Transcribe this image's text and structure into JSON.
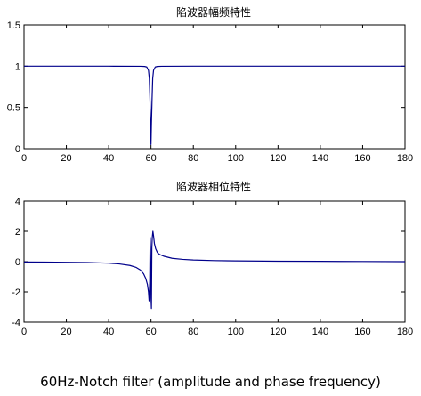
{
  "chart_data": [
    {
      "type": "line",
      "title": "陷波器幅频特性",
      "xlabel": "",
      "ylabel": "",
      "xlim": [
        0,
        180
      ],
      "ylim": [
        0,
        1.5
      ],
      "xticks": [
        "0",
        "20",
        "40",
        "60",
        "80",
        "100",
        "120",
        "140",
        "160",
        "180"
      ],
      "yticks": [
        "0",
        "0.5",
        "1",
        "1.5"
      ],
      "grid": false,
      "color": "#00008b",
      "series": [
        {
          "x": [
            0,
            20,
            40,
            55,
            57,
            58,
            58.8,
            59.2,
            59.5,
            59.8,
            60,
            60.2,
            60.5,
            60.8,
            61.2,
            62,
            63,
            65,
            80,
            120,
            180
          ],
          "y": [
            1.0,
            1.0,
            1.0,
            0.999,
            0.997,
            0.99,
            0.95,
            0.85,
            0.6,
            0.3,
            0.05,
            0.3,
            0.6,
            0.85,
            0.95,
            0.99,
            0.997,
            0.999,
            1.0,
            1.0,
            1.0
          ]
        }
      ]
    },
    {
      "type": "line",
      "title": "陷波器相位特性",
      "xlabel": "",
      "ylabel": "",
      "xlim": [
        0,
        180
      ],
      "ylim": [
        -4,
        4
      ],
      "xticks": [
        "0",
        "20",
        "40",
        "60",
        "80",
        "100",
        "120",
        "140",
        "160",
        "180"
      ],
      "yticks": [
        "-4",
        "-2",
        "0",
        "2",
        "4"
      ],
      "grid": false,
      "color": "#00008b",
      "series": [
        {
          "x": [
            0,
            10,
            20,
            30,
            40,
            45,
            50,
            53,
            55,
            56.5,
            57.5,
            58.3,
            58.8,
            59.1,
            59.4,
            59.6,
            59.8,
            60.0,
            60.2,
            60.4,
            60.6,
            60.9,
            61.2,
            61.6,
            62.2,
            63,
            64,
            66,
            70,
            75,
            80,
            90,
            100,
            120,
            140,
            160,
            180
          ],
          "y": [
            -0.02,
            -0.03,
            -0.04,
            -0.06,
            -0.1,
            -0.15,
            -0.25,
            -0.38,
            -0.55,
            -0.8,
            -1.1,
            -1.5,
            -2.0,
            -2.6,
            -1.3,
            1.6,
            0.8,
            -2.4,
            -3.1,
            0.9,
            1.6,
            2.0,
            1.7,
            1.2,
            0.85,
            0.6,
            0.48,
            0.36,
            0.22,
            0.15,
            0.11,
            0.07,
            0.05,
            0.03,
            0.02,
            0.01,
            0.0
          ]
        }
      ]
    }
  ],
  "caption": "60Hz-Notch filter (amplitude and phase frequency)"
}
